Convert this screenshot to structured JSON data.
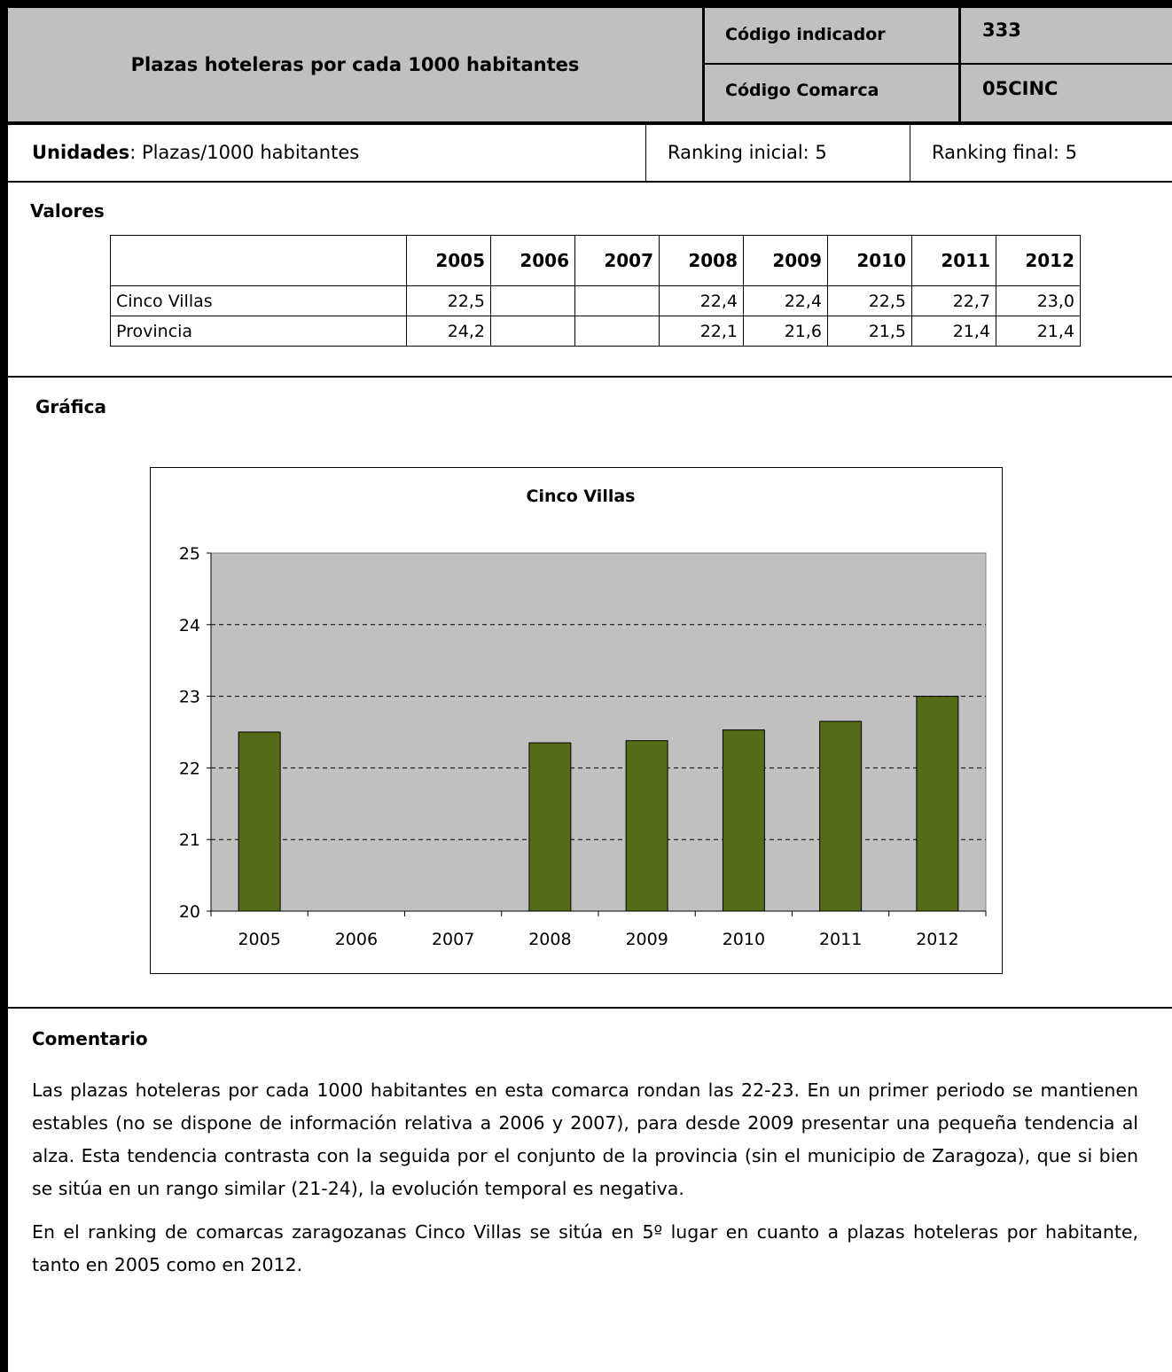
{
  "header": {
    "title": "Plazas hoteleras por cada 1000 habitantes",
    "code_label": "Código indicador",
    "code_value": "333",
    "comarca_label": "Código Comarca",
    "comarca_value": "05CINC"
  },
  "units": {
    "label": "Unidades",
    "value": ": Plazas/1000 habitantes",
    "ranking_initial": "Ranking  inicial: 5",
    "ranking_final": "Ranking  final: 5"
  },
  "values_section": {
    "title": "Valores",
    "years": [
      "2005",
      "2006",
      "2007",
      "2008",
      "2009",
      "2010",
      "2011",
      "2012"
    ],
    "rows": [
      {
        "name": "Cinco Villas",
        "values": [
          "22,5",
          "",
          "",
          "22,4",
          "22,4",
          "22,5",
          "22,7",
          "23,0"
        ]
      },
      {
        "name": "Provincia",
        "values": [
          "24,2",
          "",
          "",
          "22,1",
          "21,6",
          "21,5",
          "21,4",
          "21,4"
        ]
      }
    ]
  },
  "chart_section": {
    "title": "Gráfica"
  },
  "chart_data": {
    "type": "bar",
    "title": "Cinco Villas",
    "categories": [
      "2005",
      "2006",
      "2007",
      "2008",
      "2009",
      "2010",
      "2011",
      "2012"
    ],
    "values": [
      22.5,
      null,
      null,
      22.35,
      22.38,
      22.53,
      22.65,
      23.0
    ],
    "ylim": [
      20,
      25
    ],
    "yticks": [
      "20",
      "21",
      "22",
      "23",
      "24",
      "25"
    ],
    "xlabel": "",
    "ylabel": "",
    "grid": "horizontal-dashed",
    "bar_color": "#556b17",
    "plot_bg": "#c0c0c0"
  },
  "comment_section": {
    "title": "Comentario",
    "paragraphs": [
      "Las plazas hoteleras por cada 1000 habitantes en esta comarca rondan las 22-23. En un primer periodo se mantienen estables (no se dispone de información relativa a 2006 y 2007), para desde 2009 presentar una pequeña tendencia al alza. Esta tendencia contrasta con la seguida por el conjunto de la provincia (sin el municipio de Zaragoza), que si bien se sitúa en un rango similar (21-24), la evolución temporal es negativa.",
      "En el ranking de comarcas zaragozanas Cinco Villas se sitúa en 5º lugar en cuanto a plazas hoteleras por habitante, tanto en 2005 como en 2012."
    ]
  }
}
